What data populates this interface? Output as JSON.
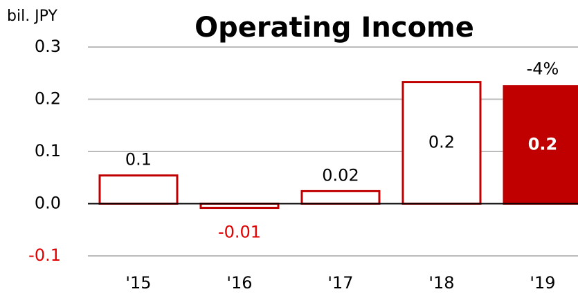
{
  "chart_data": {
    "type": "bar",
    "title": "Operating Income",
    "unit_label": "bil. JPY",
    "categories": [
      "'15",
      "'16",
      "'17",
      "'18",
      "'19"
    ],
    "values": [
      0.054,
      -0.008,
      0.024,
      0.233,
      0.225
    ],
    "value_labels": [
      "0.1",
      "-0.01",
      "0.02",
      "0.2",
      "0.2"
    ],
    "filled": [
      false,
      false,
      false,
      false,
      true
    ],
    "color": "#c00000",
    "negative_color": "#e00000",
    "annotation": "-4%",
    "ylim": [
      -0.1,
      0.3
    ],
    "yticks": [
      0.3,
      0.2,
      0.1,
      {
        "value": 0,
        "label": "0.0"
      },
      -0.1
    ],
    "grid": true
  }
}
